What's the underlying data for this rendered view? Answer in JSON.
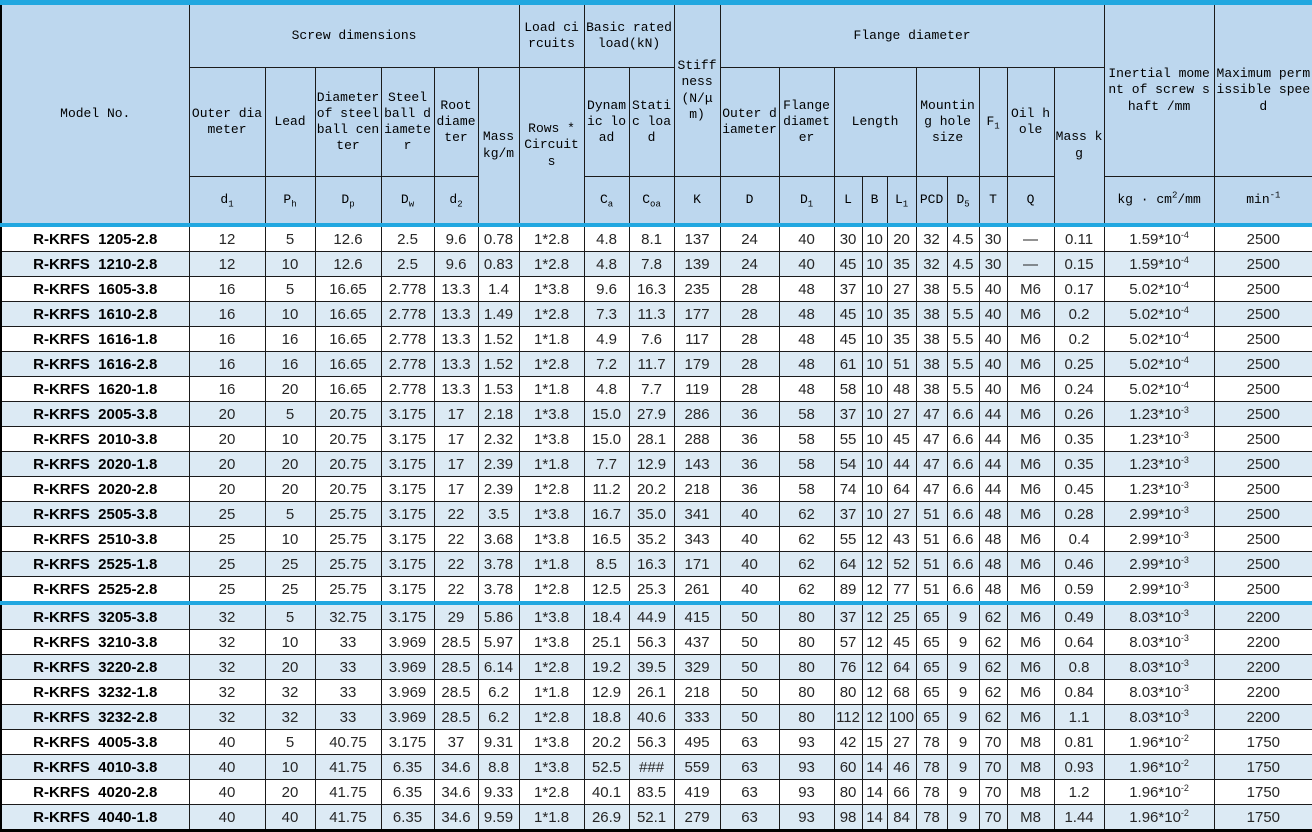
{
  "header": {
    "model": "Model No.",
    "groups": {
      "screw": "Screw dimensions",
      "load_circuits": "Load circuits",
      "rated_load": "Basic rated load(kN)",
      "stiffness": "Stiffness (N/μm)",
      "flange": "Flange diameter",
      "inertia": "Inertial moment of screw shaft /mm",
      "speed": "Maximum permissible speed"
    },
    "sub": {
      "outer_diameter": "Outer diameter",
      "lead": "Lead",
      "ball_center": "Diameter of steel ball center",
      "ball_diameter": "Steel ball diameter",
      "root_diameter": "Root diameter",
      "mass_per_m": "Mass kg/m",
      "rows_circuits": "Rows * Circuits",
      "dynamic_load": "Dynamic load",
      "static_load": "Static load",
      "flange_outer": "Outer diameter",
      "flange_dia": "Flange diameter",
      "length": "Length",
      "mounting": "Mounting hole size",
      "f1": "F_{1}",
      "oil_hole": "Oil hole",
      "mass": "Mass kg"
    },
    "symbols": {
      "d1": "d_{1}",
      "Ph": "P_{h}",
      "Dp": "D_{p}",
      "Dw": "D_{w}",
      "d2": "d_{2}",
      "Ca": "C_{a}",
      "Coa": "C_{oa}",
      "K": "K",
      "D": "D",
      "D1": "D_{1}",
      "L": "L",
      "B": "B",
      "L1": "L_{1}",
      "PCD": "PCD",
      "D5": "D_{5}",
      "T": "T",
      "Q": "Q"
    },
    "units": {
      "inertia": "kg · cm^{2}/mm",
      "speed": "min^{-1}"
    }
  },
  "table": {
    "col_keys": [
      "d1",
      "Ph",
      "Dp",
      "Dw",
      "d2",
      "mass-kg-m",
      "rows-circuits",
      "Ca",
      "Coa",
      "K",
      "D",
      "D1",
      "L",
      "B",
      "L1",
      "PCD",
      "D5",
      "T",
      "Q",
      "mass-kg",
      "inertia",
      "max-speed"
    ],
    "rows": [
      {
        "model": "R-KRFS  1205-2.8",
        "values": [
          "12",
          "5",
          "12.6",
          "2.5",
          "9.6",
          "0.78",
          "1*2.8",
          "4.8",
          "8.1",
          "137",
          "24",
          "40",
          "30",
          "10",
          "20",
          "32",
          "4.5",
          "30",
          "—",
          "0.11",
          "1.59*10^{-4}",
          "2500"
        ]
      },
      {
        "model": "R-KRFS  1210-2.8",
        "values": [
          "12",
          "10",
          "12.6",
          "2.5",
          "9.6",
          "0.83",
          "1*2.8",
          "4.8",
          "7.8",
          "139",
          "24",
          "40",
          "45",
          "10",
          "35",
          "32",
          "4.5",
          "30",
          "—",
          "0.15",
          "1.59*10^{-4}",
          "2500"
        ]
      },
      {
        "model": "R-KRFS  1605-3.8",
        "values": [
          "16",
          "5",
          "16.65",
          "2.778",
          "13.3",
          "1.4",
          "1*3.8",
          "9.6",
          "16.3",
          "235",
          "28",
          "48",
          "37",
          "10",
          "27",
          "38",
          "5.5",
          "40",
          "M6",
          "0.17",
          "5.02*10^{-4}",
          "2500"
        ]
      },
      {
        "model": "R-KRFS  1610-2.8",
        "values": [
          "16",
          "10",
          "16.65",
          "2.778",
          "13.3",
          "1.49",
          "1*2.8",
          "7.3",
          "11.3",
          "177",
          "28",
          "48",
          "45",
          "10",
          "35",
          "38",
          "5.5",
          "40",
          "M6",
          "0.2",
          "5.02*10^{-4}",
          "2500"
        ]
      },
      {
        "model": "R-KRFS  1616-1.8",
        "values": [
          "16",
          "16",
          "16.65",
          "2.778",
          "13.3",
          "1.52",
          "1*1.8",
          "4.9",
          "7.6",
          "117",
          "28",
          "48",
          "45",
          "10",
          "35",
          "38",
          "5.5",
          "40",
          "M6",
          "0.2",
          "5.02*10^{-4}",
          "2500"
        ]
      },
      {
        "model": "R-KRFS  1616-2.8",
        "values": [
          "16",
          "16",
          "16.65",
          "2.778",
          "13.3",
          "1.52",
          "1*2.8",
          "7.2",
          "11.7",
          "179",
          "28",
          "48",
          "61",
          "10",
          "51",
          "38",
          "5.5",
          "40",
          "M6",
          "0.25",
          "5.02*10^{-4}",
          "2500"
        ]
      },
      {
        "model": "R-KRFS  1620-1.8",
        "values": [
          "16",
          "20",
          "16.65",
          "2.778",
          "13.3",
          "1.53",
          "1*1.8",
          "4.8",
          "7.7",
          "119",
          "28",
          "48",
          "58",
          "10",
          "48",
          "38",
          "5.5",
          "40",
          "M6",
          "0.24",
          "5.02*10^{-4}",
          "2500"
        ]
      },
      {
        "model": "R-KRFS  2005-3.8",
        "values": [
          "20",
          "5",
          "20.75",
          "3.175",
          "17",
          "2.18",
          "1*3.8",
          "15.0",
          "27.9",
          "286",
          "36",
          "58",
          "37",
          "10",
          "27",
          "47",
          "6.6",
          "44",
          "M6",
          "0.26",
          "1.23*10^{-3}",
          "2500"
        ]
      },
      {
        "model": "R-KRFS  2010-3.8",
        "values": [
          "20",
          "10",
          "20.75",
          "3.175",
          "17",
          "2.32",
          "1*3.8",
          "15.0",
          "28.1",
          "288",
          "36",
          "58",
          "55",
          "10",
          "45",
          "47",
          "6.6",
          "44",
          "M6",
          "0.35",
          "1.23*10^{-3}",
          "2500"
        ]
      },
      {
        "model": "R-KRFS  2020-1.8",
        "values": [
          "20",
          "20",
          "20.75",
          "3.175",
          "17",
          "2.39",
          "1*1.8",
          "7.7",
          "12.9",
          "143",
          "36",
          "58",
          "54",
          "10",
          "44",
          "47",
          "6.6",
          "44",
          "M6",
          "0.35",
          "1.23*10^{-3}",
          "2500"
        ]
      },
      {
        "model": "R-KRFS  2020-2.8",
        "values": [
          "20",
          "20",
          "20.75",
          "3.175",
          "17",
          "2.39",
          "1*2.8",
          "11.2",
          "20.2",
          "218",
          "36",
          "58",
          "74",
          "10",
          "64",
          "47",
          "6.6",
          "44",
          "M6",
          "0.45",
          "1.23*10^{-3}",
          "2500"
        ]
      },
      {
        "model": "R-KRFS  2505-3.8",
        "values": [
          "25",
          "5",
          "25.75",
          "3.175",
          "22",
          "3.5",
          "1*3.8",
          "16.7",
          "35.0",
          "341",
          "40",
          "62",
          "37",
          "10",
          "27",
          "51",
          "6.6",
          "48",
          "M6",
          "0.28",
          "2.99*10^{-3}",
          "2500"
        ]
      },
      {
        "model": "R-KRFS  2510-3.8",
        "values": [
          "25",
          "10",
          "25.75",
          "3.175",
          "22",
          "3.68",
          "1*3.8",
          "16.5",
          "35.2",
          "343",
          "40",
          "62",
          "55",
          "12",
          "43",
          "51",
          "6.6",
          "48",
          "M6",
          "0.4",
          "2.99*10^{-3}",
          "2500"
        ]
      },
      {
        "model": "R-KRFS  2525-1.8",
        "values": [
          "25",
          "25",
          "25.75",
          "3.175",
          "22",
          "3.78",
          "1*1.8",
          "8.5",
          "16.3",
          "171",
          "40",
          "62",
          "64",
          "12",
          "52",
          "51",
          "6.6",
          "48",
          "M6",
          "0.46",
          "2.99*10^{-3}",
          "2500"
        ]
      },
      {
        "model": "R-KRFS  2525-2.8",
        "values": [
          "25",
          "25",
          "25.75",
          "3.175",
          "22",
          "3.78",
          "1*2.8",
          "12.5",
          "25.3",
          "261",
          "40",
          "62",
          "89",
          "12",
          "77",
          "51",
          "6.6",
          "48",
          "M6",
          "0.59",
          "2.99*10^{-3}",
          "2500"
        ]
      },
      {
        "model": "R-KRFS  3205-3.8",
        "values": [
          "32",
          "5",
          "32.75",
          "3.175",
          "29",
          "5.86",
          "1*3.8",
          "18.4",
          "44.9",
          "415",
          "50",
          "80",
          "37",
          "12",
          "25",
          "65",
          "9",
          "62",
          "M6",
          "0.49",
          "8.03*10^{-3}",
          "2200"
        ]
      },
      {
        "model": "R-KRFS  3210-3.8",
        "values": [
          "32",
          "10",
          "33",
          "3.969",
          "28.5",
          "5.97",
          "1*3.8",
          "25.1",
          "56.3",
          "437",
          "50",
          "80",
          "57",
          "12",
          "45",
          "65",
          "9",
          "62",
          "M6",
          "0.64",
          "8.03*10^{-3}",
          "2200"
        ]
      },
      {
        "model": "R-KRFS  3220-2.8",
        "values": [
          "32",
          "20",
          "33",
          "3.969",
          "28.5",
          "6.14",
          "1*2.8",
          "19.2",
          "39.5",
          "329",
          "50",
          "80",
          "76",
          "12",
          "64",
          "65",
          "9",
          "62",
          "M6",
          "0.8",
          "8.03*10^{-3}",
          "2200"
        ]
      },
      {
        "model": "R-KRFS  3232-1.8",
        "values": [
          "32",
          "32",
          "33",
          "3.969",
          "28.5",
          "6.2",
          "1*1.8",
          "12.9",
          "26.1",
          "218",
          "50",
          "80",
          "80",
          "12",
          "68",
          "65",
          "9",
          "62",
          "M6",
          "0.84",
          "8.03*10^{-3}",
          "2200"
        ]
      },
      {
        "model": "R-KRFS  3232-2.8",
        "values": [
          "32",
          "32",
          "33",
          "3.969",
          "28.5",
          "6.2",
          "1*2.8",
          "18.8",
          "40.6",
          "333",
          "50",
          "80",
          "112",
          "12",
          "100",
          "65",
          "9",
          "62",
          "M6",
          "1.1",
          "8.03*10^{-3}",
          "2200"
        ]
      },
      {
        "model": "R-KRFS  4005-3.8",
        "values": [
          "40",
          "5",
          "40.75",
          "3.175",
          "37",
          "9.31",
          "1*3.8",
          "20.2",
          "56.3",
          "495",
          "63",
          "93",
          "42",
          "15",
          "27",
          "78",
          "9",
          "70",
          "M8",
          "0.81",
          "1.96*10^{-2}",
          "1750"
        ]
      },
      {
        "model": "R-KRFS  4010-3.8",
        "values": [
          "40",
          "10",
          "41.75",
          "6.35",
          "34.6",
          "8.8",
          "1*3.8",
          "52.5",
          "###",
          "559",
          "63",
          "93",
          "60",
          "14",
          "46",
          "78",
          "9",
          "70",
          "M8",
          "0.93",
          "1.96*10^{-2}",
          "1750"
        ]
      },
      {
        "model": "R-KRFS  4020-2.8",
        "values": [
          "40",
          "20",
          "41.75",
          "6.35",
          "34.6",
          "9.33",
          "1*2.8",
          "40.1",
          "83.5",
          "419",
          "63",
          "93",
          "80",
          "14",
          "66",
          "78",
          "9",
          "70",
          "M8",
          "1.2",
          "1.96*10^{-2}",
          "1750"
        ]
      },
      {
        "model": "R-KRFS  4040-1.8",
        "values": [
          "40",
          "40",
          "41.75",
          "6.35",
          "34.6",
          "9.59",
          "1*1.8",
          "26.9",
          "52.1",
          "279",
          "63",
          "93",
          "98",
          "14",
          "84",
          "78",
          "9",
          "70",
          "M8",
          "1.44",
          "1.96*10^{-2}",
          "1750"
        ]
      }
    ],
    "group_break_after_row": 15,
    "colors": {
      "header_bg": "#BDD7EE",
      "shaded_row_bg": "#DCEAF4",
      "accent_line": "#21A7E0",
      "grid_line": "#1b1b1b"
    }
  }
}
